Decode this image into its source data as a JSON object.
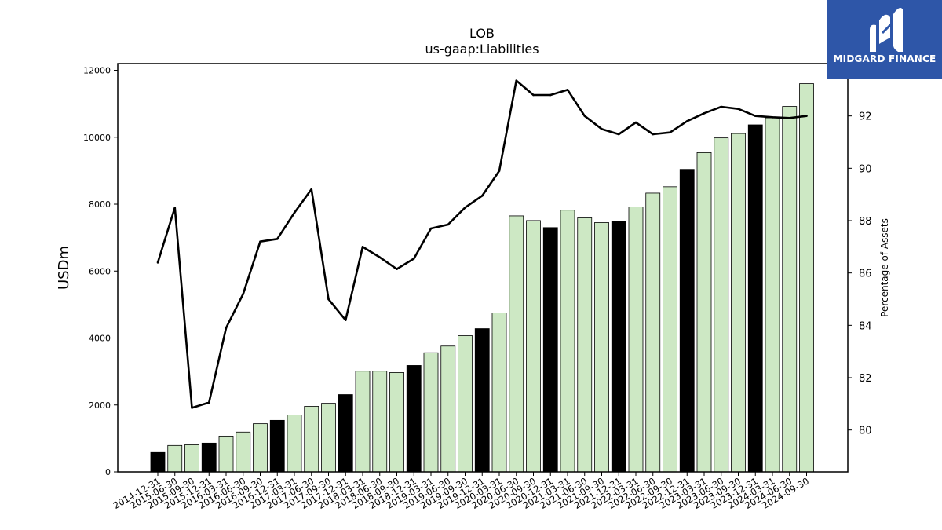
{
  "chart_data": {
    "type": "bar",
    "title": "LOB",
    "subtitle": "us-gaap:Liabilities",
    "ylabel": "USDm",
    "y2label": "Percentage of Assets",
    "ylim": [
      0,
      12200
    ],
    "y2lim": [
      78.4,
      94.0
    ],
    "yticks": [
      0,
      2000,
      4000,
      6000,
      8000,
      10000,
      12000
    ],
    "y2ticks": [
      80,
      82,
      84,
      86,
      88,
      90,
      92
    ],
    "categories": [
      "2014-12-31",
      "2015-06-30",
      "2015-09-30",
      "2015-12-31",
      "2016-03-31",
      "2016-06-30",
      "2016-09-30",
      "2016-12-31",
      "2017-03-31",
      "2017-06-30",
      "2017-09-30",
      "2017-12-31",
      "2018-03-31",
      "2018-06-30",
      "2018-09-30",
      "2018-12-31",
      "2019-03-31",
      "2019-06-30",
      "2019-09-30",
      "2019-12-31",
      "2020-03-31",
      "2020-06-30",
      "2020-09-30",
      "2020-12-31",
      "2021-03-31",
      "2021-06-30",
      "2021-09-30",
      "2021-12-31",
      "2022-03-31",
      "2022-06-30",
      "2022-09-30",
      "2022-12-31",
      "2023-03-31",
      "2023-06-30",
      "2023-09-30",
      "2023-12-31",
      "2024-03-31",
      "2024-06-30",
      "2024-09-30"
    ],
    "series": [
      {
        "kind": "bar",
        "axis": "left",
        "values": [
          580,
          790,
          810,
          860,
          1070,
          1190,
          1440,
          1540,
          1700,
          1960,
          2050,
          2310,
          3010,
          3010,
          2970,
          3180,
          3560,
          3760,
          4070,
          4280,
          4750,
          7650,
          7510,
          7300,
          7820,
          7590,
          7450,
          7490,
          7920,
          8330,
          8520,
          9040,
          9540,
          9980,
          10110,
          10370,
          10580,
          10920,
          11600
        ],
        "year_end": [
          true,
          false,
          false,
          true,
          false,
          false,
          false,
          true,
          false,
          false,
          false,
          true,
          false,
          false,
          false,
          true,
          false,
          false,
          false,
          true,
          false,
          false,
          false,
          true,
          false,
          false,
          false,
          true,
          false,
          false,
          false,
          true,
          false,
          false,
          false,
          true,
          false,
          false,
          false
        ]
      },
      {
        "kind": "line",
        "axis": "right",
        "values": [
          86.4,
          88.5,
          80.85,
          81.05,
          83.9,
          85.2,
          87.2,
          87.3,
          88.3,
          89.2,
          85.0,
          84.2,
          87.0,
          86.6,
          86.15,
          86.55,
          87.7,
          87.85,
          88.5,
          88.95,
          89.9,
          93.35,
          92.8,
          92.8,
          93.0,
          92.0,
          91.5,
          91.3,
          91.75,
          91.3,
          91.37,
          91.8,
          92.1,
          92.35,
          92.27,
          92.0,
          91.95,
          91.92,
          92.0
        ]
      }
    ],
    "colors": {
      "bar_year_end": "#000000",
      "bar_other": "#cde8c4",
      "bar_edge": "#000000",
      "line": "#000000"
    },
    "grid": false
  },
  "logo": {
    "text": "MIDGARD FINANCE",
    "icon": "midgard-m-logo-icon",
    "color": "#2e56a8"
  }
}
